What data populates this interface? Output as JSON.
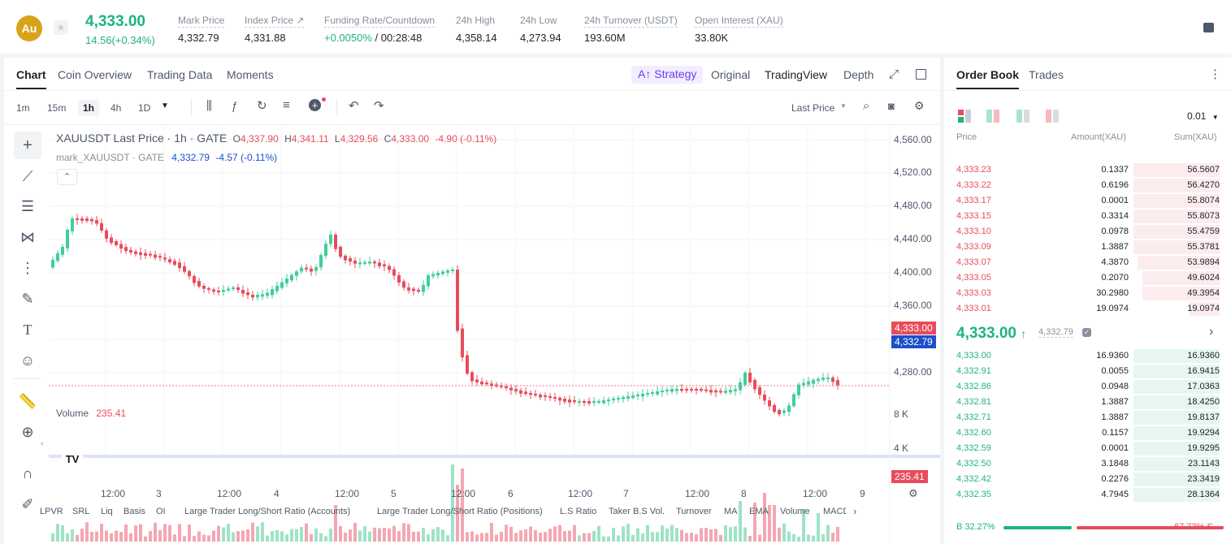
{
  "header": {
    "symbol_badge": "Au",
    "last_price": "4,333.00",
    "change": "14.56(+0.34%)",
    "stats": [
      {
        "label": "Mark Price",
        "value": "4,332.79"
      },
      {
        "label": "Index Price ↗",
        "value": "4,331.88"
      },
      {
        "label": "Funding Rate/Countdown",
        "value_green": "+0.0050%",
        "value": "/ 00:28:48"
      },
      {
        "label": "24h High",
        "value": "4,358.14"
      },
      {
        "label": "24h Low",
        "value": "4,273.94"
      },
      {
        "label": "24h Turnover (USDT)",
        "value": "193.60M"
      },
      {
        "label": "Open Interest (XAU)",
        "value": "33.80K"
      }
    ]
  },
  "chart_tabs": [
    "Chart",
    "Coin Overview",
    "Trading Data",
    "Moments"
  ],
  "view_tabs": {
    "strategy": "A↑ Strategy",
    "original": "Original",
    "tradingview": "TradingView",
    "depth": "Depth"
  },
  "intervals": [
    "1m",
    "15m",
    "1h",
    "4h",
    "1D"
  ],
  "active_interval": "1h",
  "price_type": "Last Price",
  "legend": {
    "title": "XAUUSDT Last Price · 1h · GATE",
    "o_label": "O",
    "o": "4,337.90",
    "h_label": "H",
    "h": "4,341.11",
    "l_label": "L",
    "l": "4,329.56",
    "c_label": "C",
    "c": "4,333.00",
    "chg": "-4.90 (-0.11%)",
    "mark_label": "mark_XAUUSDT · GATE",
    "mark_value": "4,332.79",
    "mark_chg": "-4.57 (-0.11%)"
  },
  "price_axis": [
    "4,560.00",
    "4,520.00",
    "4,480.00",
    "4,440.00",
    "4,400.00",
    "4,360.00",
    "4,320.00",
    "4,280.00"
  ],
  "last_price_tag": "4,333.00",
  "mark_price_tag": "4,332.79",
  "volume": {
    "label": "Volume",
    "value": "235.41",
    "axis": [
      "8 K",
      "4 K"
    ],
    "tag": "235.41"
  },
  "time_axis": [
    "12:00",
    "3",
    "12:00",
    "4",
    "12:00",
    "5",
    "12:00",
    "6",
    "12:00",
    "7",
    "12:00",
    "8",
    "12:00",
    "9"
  ],
  "indicators": [
    "LPVR",
    "SRL",
    "Liq",
    "Basis",
    "OI",
    "Large Trader Long/Short Ratio (Accounts)",
    "Large Trader Long/Short Ratio (Positions)",
    "L.S Ratio",
    "Taker B.S Vol.",
    "Turnover",
    "MA",
    "EMA",
    "Volume",
    "MACD"
  ],
  "tradingview_logo": "TV",
  "orderbook": {
    "tabs": [
      "Order Book",
      "Trades"
    ],
    "precision": "0.01",
    "columns": [
      "Price",
      "Amount(XAU)",
      "Sum(XAU)"
    ],
    "asks": [
      {
        "price": "4,333.23",
        "amount": "0.1337",
        "sum": "56.5607",
        "depth": 0.2
      },
      {
        "price": "4,333.22",
        "amount": "0.6196",
        "sum": "56.4270",
        "depth": 0.2
      },
      {
        "price": "4,333.17",
        "amount": "0.0001",
        "sum": "55.8074",
        "depth": 0.2
      },
      {
        "price": "4,333.15",
        "amount": "0.3314",
        "sum": "55.8073",
        "depth": 0.2
      },
      {
        "price": "4,333.10",
        "amount": "0.0978",
        "sum": "55.4759",
        "depth": 0.2
      },
      {
        "price": "4,333.09",
        "amount": "1.3887",
        "sum": "55.3781",
        "depth": 0.2
      },
      {
        "price": "4,333.07",
        "amount": "4.3870",
        "sum": "53.9894",
        "depth": 0.19
      },
      {
        "price": "4,333.05",
        "amount": "0.2070",
        "sum": "49.6024",
        "depth": 0.18
      },
      {
        "price": "4,333.03",
        "amount": "30.2980",
        "sum": "49.3954",
        "depth": 0.18
      },
      {
        "price": "4,333.01",
        "amount": "19.0974",
        "sum": "19.0974",
        "depth": 0.07
      }
    ],
    "mid_price": "4,333.00",
    "mid_mark": "4,332.79",
    "bids": [
      {
        "price": "4,333.00",
        "amount": "16.9360",
        "sum": "16.9360",
        "depth": 0.2
      },
      {
        "price": "4,332.91",
        "amount": "0.0055",
        "sum": "16.9415",
        "depth": 0.2
      },
      {
        "price": "4,332.86",
        "amount": "0.0948",
        "sum": "17.0363",
        "depth": 0.2
      },
      {
        "price": "4,332.81",
        "amount": "1.3887",
        "sum": "18.4250",
        "depth": 0.2
      },
      {
        "price": "4,332.71",
        "amount": "1.3887",
        "sum": "19.8137",
        "depth": 0.2
      },
      {
        "price": "4,332.60",
        "amount": "0.1157",
        "sum": "19.9294",
        "depth": 0.2
      },
      {
        "price": "4,332.59",
        "amount": "0.0001",
        "sum": "19.9295",
        "depth": 0.2
      },
      {
        "price": "4,332.50",
        "amount": "3.1848",
        "sum": "23.1143",
        "depth": 0.2
      },
      {
        "price": "4,332.42",
        "amount": "0.2276",
        "sum": "23.3419",
        "depth": 0.2
      },
      {
        "price": "4,332.35",
        "amount": "4.7945",
        "sum": "28.1364",
        "depth": 0.2
      }
    ],
    "buy_ratio": "B 32.27%",
    "sell_ratio": "67.73% S",
    "buy_fraction": 0.3227
  },
  "colors": {
    "up": "#1db47b",
    "down": "#e84c5c",
    "mark": "#1c4fc9",
    "accent": "#6e3bf2"
  }
}
